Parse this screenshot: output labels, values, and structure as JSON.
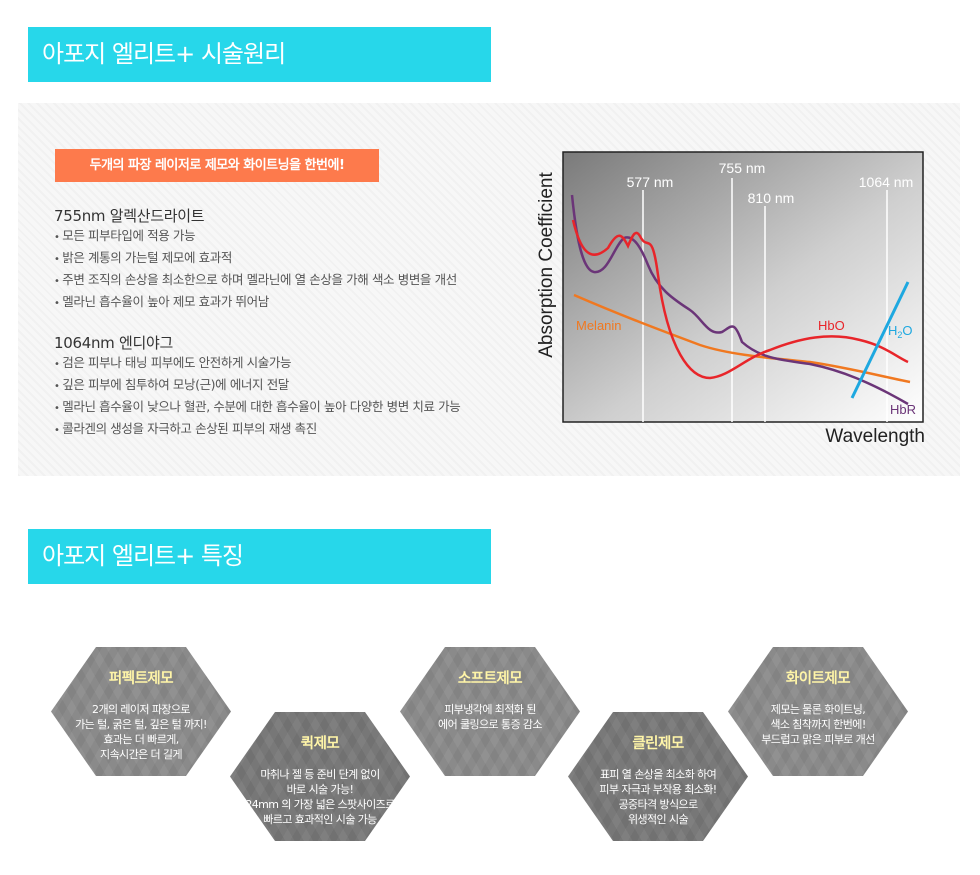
{
  "section1": {
    "banner": "아포지 엘리트+ 시술원리",
    "tag": "두개의 파장 레이저로 제모와 화이트닝을 한번에!",
    "groups": [
      {
        "title": "755nm 알렉산드라이트",
        "items": [
          "모든 피부타입에 적용 가능",
          "밝은 계통의 가는털 제모에 효과적",
          "주변 조직의 손상을 최소한으로 하며 멜라닌에 열 손상을 가해 색소 병변을 개선",
          "멜라닌 흡수율이 높아 제모 효과가 뛰어남"
        ]
      },
      {
        "title": "1064nm 엔디야그",
        "items": [
          "검은 피부나 태닝 피부에도 안전하게 시술가능",
          "깊은 피부에 침투하여 모낭(근)에 에너지 전달",
          "멜라닌 흡수율이 낮으나 혈관, 수분에 대한 흡수율이 높아 다양한 병변 치료 가능",
          "콜라겐의 생성을 자극하고 손상된 피부의 재생 촉진"
        ]
      }
    ]
  },
  "chart_data": {
    "type": "line",
    "xlabel": "Wavelength",
    "ylabel": "Absorption Coefficient",
    "markers": [
      "577 nm",
      "755 nm",
      "810 nm",
      "1064 nm"
    ],
    "series": [
      {
        "name": "Melanin",
        "color": "#f07820"
      },
      {
        "name": "HbO",
        "color": "#e8252a"
      },
      {
        "name": "HbR",
        "color": "#6b3578"
      },
      {
        "name": "H2O",
        "color": "#1ea8e0"
      }
    ]
  },
  "section2": {
    "banner": "아포지 엘리트+ 특징",
    "hexes": [
      {
        "title": "퍼펙트제모",
        "lines": [
          "2개의 레이저 파장으로",
          "가는 털, 굵은 털, 깊은 털 까지!",
          "효과는 더 빠르게,",
          "지속시간은 더 길게"
        ]
      },
      {
        "title": "퀵제모",
        "lines": [
          "마취나 젤 등 준비 단계 없이",
          "바로 시술 가능!",
          "24mm 의 가장 넓은 스팟사이즈로",
          "빠르고 효과적인 시술 가능"
        ]
      },
      {
        "title": "소프트제모",
        "lines": [
          "피부냉각에 최적화 된",
          "에어 쿨링으로 통증 감소"
        ]
      },
      {
        "title": "클린제모",
        "lines": [
          "표피 열 손상을 최소화 하여",
          "피부 자극과 부작용 최소화!",
          "공중타격 방식으로",
          "위생적인 시술"
        ]
      },
      {
        "title": "화이트제모",
        "lines": [
          "제모는 물론 화이트닝,",
          "색소 침착까지 한번에!",
          "부드럽고 맑은 피부로 개선"
        ]
      }
    ]
  }
}
